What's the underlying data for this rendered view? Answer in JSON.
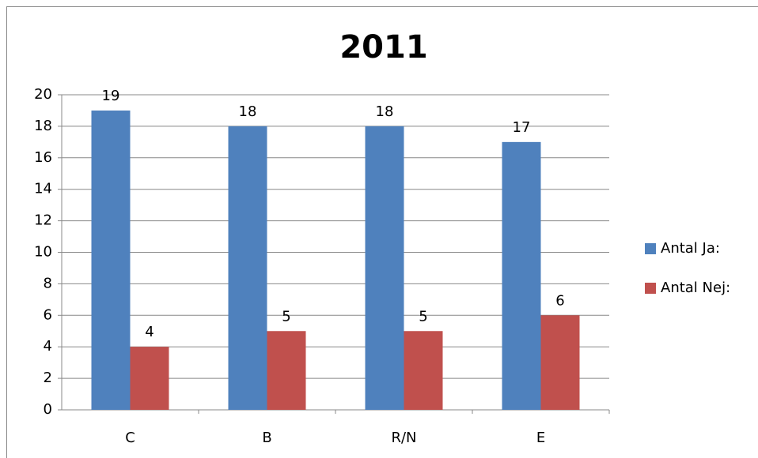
{
  "chart_data": {
    "type": "bar",
    "title": "2011",
    "categories": [
      "C",
      "B",
      "R/N",
      "E"
    ],
    "series": [
      {
        "name": "Antal Ja:",
        "color": "#4f81bd",
        "values": [
          19,
          18,
          18,
          17
        ]
      },
      {
        "name": "Antal Nej:",
        "color": "#c0504d",
        "values": [
          4,
          5,
          5,
          6
        ]
      }
    ],
    "ylim": [
      0,
      20
    ],
    "yticks": [
      0,
      2,
      4,
      6,
      8,
      10,
      12,
      14,
      16,
      18,
      20
    ],
    "grid": true,
    "legend": "right",
    "data_labels": true
  }
}
